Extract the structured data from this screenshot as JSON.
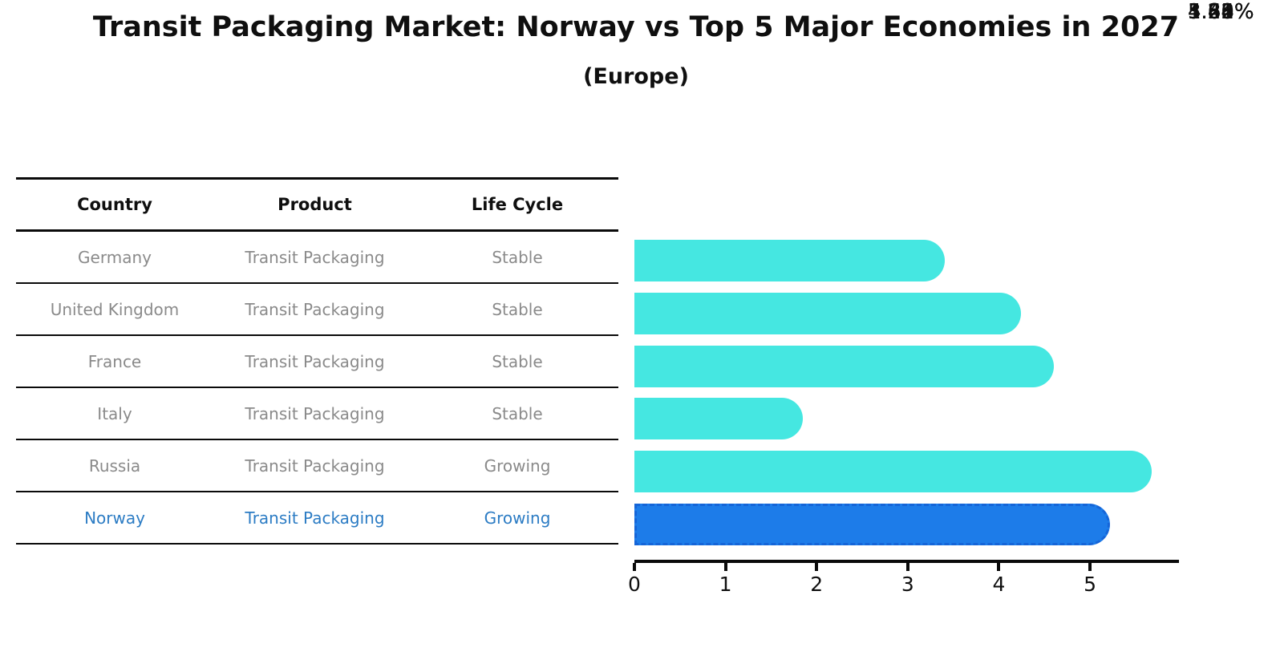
{
  "title": "Transit Packaging Market: Norway vs Top 5 Major Economies in 2027",
  "subtitle": "(Europe)",
  "table": {
    "headers": {
      "country": "Country",
      "product": "Product",
      "life_cycle": "Life Cycle"
    },
    "rows": [
      {
        "country": "Germany",
        "product": "Transit Packaging",
        "life_cycle": "Stable",
        "highlight": false
      },
      {
        "country": "United Kingdom",
        "product": "Transit Packaging",
        "life_cycle": "Stable",
        "highlight": false
      },
      {
        "country": "France",
        "product": "Transit Packaging",
        "life_cycle": "Stable",
        "highlight": false
      },
      {
        "country": "Italy",
        "product": "Transit Packaging",
        "life_cycle": "Stable",
        "highlight": false
      },
      {
        "country": "Russia",
        "product": "Transit Packaging",
        "life_cycle": "Growing",
        "highlight": false
      },
      {
        "country": "Norway",
        "product": "Transit Packaging",
        "life_cycle": "Growing",
        "highlight": true
      }
    ]
  },
  "chart_data": {
    "type": "bar",
    "orientation": "horizontal",
    "title": "Transit Packaging Market: Norway vs Top 5 Major Economies in 2027",
    "subtitle": "(Europe)",
    "categories": [
      "Germany",
      "United Kingdom",
      "France",
      "Italy",
      "Russia",
      "Norway"
    ],
    "values": [
      3.41,
      4.24,
      4.6,
      1.85,
      5.68,
      5.22
    ],
    "value_labels": [
      "3.41%",
      "4.24%",
      "4.60%",
      "1.85%",
      "5.68%",
      "5.22%"
    ],
    "x_ticks": [
      0,
      1,
      2,
      3,
      4,
      5
    ],
    "xlim": [
      0,
      5.95
    ],
    "grid": false,
    "legend": false,
    "highlight_index": 5
  },
  "colors": {
    "bar": "#45e7e1",
    "highlight_bar": "#1d7ce9",
    "highlight_bar_border": "#1565d8",
    "highlight_text": "#2c7cc4",
    "row_text": "#8a8a8a",
    "header_text": "#0f0f0f",
    "axis": "#0a0a0a"
  }
}
